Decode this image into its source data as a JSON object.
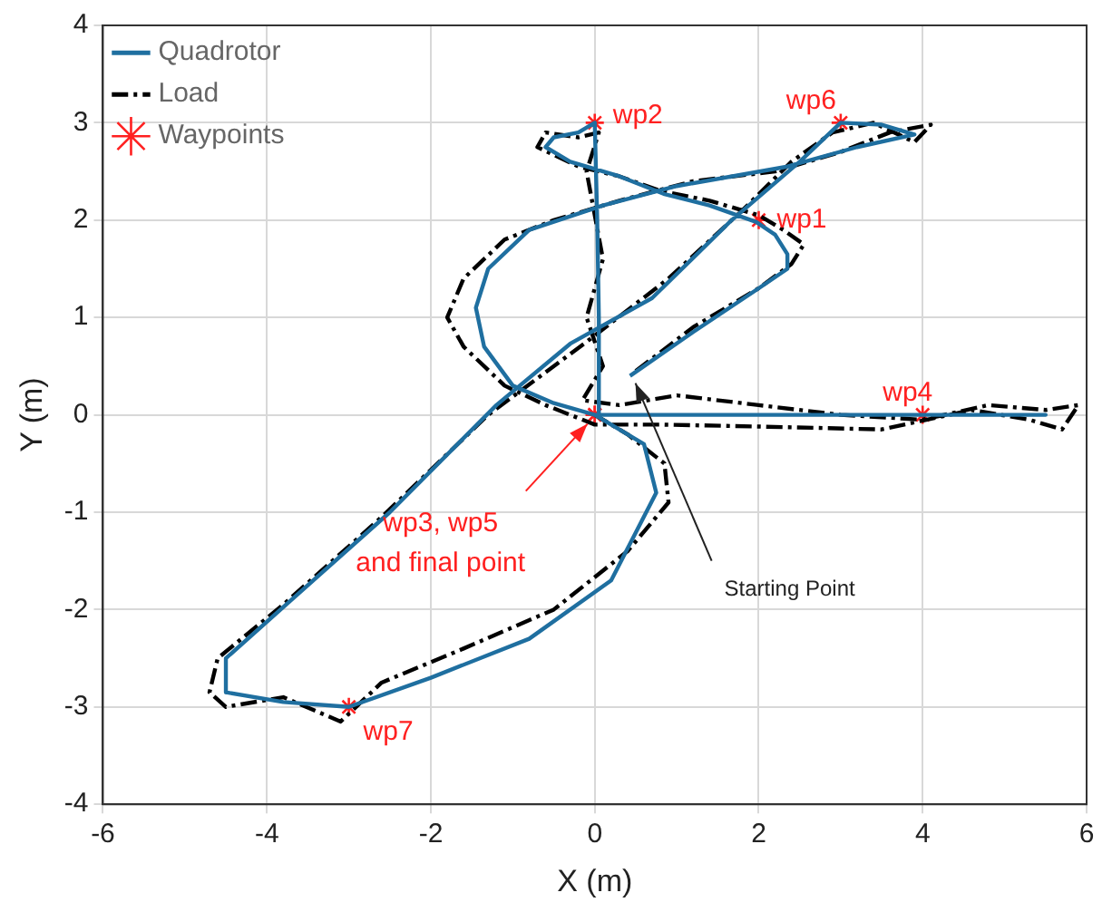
{
  "chart_data": {
    "type": "line",
    "xlabel": "X (m)",
    "ylabel": "Y (m)",
    "xlim": [
      -6,
      6
    ],
    "xticks": [
      -6,
      -4,
      -2,
      0,
      2,
      4,
      6
    ],
    "ylim": [
      -4,
      4
    ],
    "yticks": [
      -4,
      -3,
      -2,
      -1,
      0,
      1,
      2,
      3,
      4
    ],
    "grid": true,
    "legend": "top left",
    "series": [
      {
        "name": "Quadrotor",
        "color": "#1f6fa0",
        "line_style": "solid",
        "marker": "none",
        "x": [
          0.43,
          1.2,
          2.0,
          2.35,
          2.35,
          2.2,
          1.97,
          1.4,
          0.84,
          0.3,
          -0.3,
          -0.6,
          -0.5,
          -0.2,
          0,
          0.03,
          0.05,
          0.05,
          2,
          4,
          5.5,
          4,
          2,
          0,
          -0.5,
          -1.0,
          -1.35,
          -1.45,
          -1.3,
          -0.8,
          0.1,
          1,
          2.35,
          3.2,
          3.9,
          3.5,
          3.0,
          2.5,
          1.67,
          0.7,
          -0.3,
          -1.2,
          -2.5,
          -3.7,
          -4.5,
          -4.5,
          -3.8,
          -3,
          -2,
          -0.8,
          0.2,
          0.75,
          0.6,
          0
        ],
        "values": [
          0.4,
          0.85,
          1.3,
          1.5,
          1.65,
          1.85,
          1.98,
          2.15,
          2.27,
          2.45,
          2.6,
          2.75,
          2.85,
          2.9,
          3.0,
          2.0,
          1.0,
          0.0,
          0.0,
          0.0,
          0.0,
          0.0,
          0.0,
          0.0,
          0.12,
          0.3,
          0.7,
          1.1,
          1.5,
          1.9,
          2.15,
          2.35,
          2.55,
          2.75,
          2.88,
          2.98,
          3.0,
          2.6,
          2.0,
          1.2,
          0.73,
          0.1,
          -1,
          -1.9,
          -2.5,
          -2.85,
          -2.95,
          -3,
          -2.7,
          -2.3,
          -1.7,
          -0.8,
          -0.3,
          0
        ]
      },
      {
        "name": "Load",
        "color": "#000000",
        "line_style": "dashed",
        "marker": "none",
        "x": [
          0.5,
          1.2,
          2.0,
          2.4,
          2.55,
          2.3,
          2.0,
          1.4,
          0.8,
          0.3,
          -0.2,
          -0.7,
          -0.6,
          -0.2,
          0.05,
          -0.1,
          0.1,
          -0.1,
          0.1,
          -0.15,
          0.3,
          1,
          2,
          3,
          4,
          4.8,
          5.5,
          5.9,
          5.7,
          5.3,
          4.6,
          3.5,
          2,
          0.8,
          0,
          -0.6,
          -1.1,
          -1.6,
          -1.8,
          -1.6,
          -1.1,
          -0.5,
          0.3,
          1.2,
          2.2,
          3.0,
          3.6,
          4.1,
          3.9,
          3.4,
          2.9,
          2.4,
          1.8,
          0.9,
          -0.1,
          -1.3,
          -2.6,
          -3.8,
          -4.6,
          -4.7,
          -4.5,
          -3.8,
          -3.1,
          -2.6,
          -1.6,
          -0.5,
          0.4,
          0.9,
          0.85,
          0.4,
          0
        ],
        "values": [
          0.45,
          0.9,
          1.3,
          1.55,
          1.75,
          1.9,
          2.05,
          2.2,
          2.3,
          2.45,
          2.55,
          2.75,
          2.9,
          2.85,
          2.9,
          2.5,
          1.6,
          1.0,
          0.5,
          0.15,
          0.1,
          0.2,
          0.1,
          0.0,
          -0.05,
          0.1,
          0.05,
          0.1,
          -0.15,
          -0.05,
          0.05,
          -0.15,
          -0.12,
          -0.1,
          -0.1,
          0.1,
          0.3,
          0.7,
          1.0,
          1.4,
          1.8,
          2.0,
          2.2,
          2.4,
          2.5,
          2.7,
          2.9,
          2.98,
          2.8,
          3.0,
          2.9,
          2.6,
          2.1,
          1.4,
          0.75,
          0.0,
          -1.05,
          -1.95,
          -2.5,
          -2.85,
          -3.0,
          -2.9,
          -3.15,
          -2.75,
          -2.4,
          -2.0,
          -1.4,
          -0.9,
          -0.5,
          -0.2,
          0
        ]
      },
      {
        "name": "Waypoints",
        "type": "scatter",
        "color": "#ff2020",
        "marker": "cross",
        "x": [
          2,
          0,
          0,
          4,
          0,
          3,
          -3
        ],
        "values": [
          2,
          3,
          0,
          0,
          0,
          3,
          -3
        ]
      }
    ],
    "annotations": [
      {
        "text": "wp1",
        "x": 2,
        "y": 2
      },
      {
        "text": "wp2",
        "x": 0,
        "y": 3
      },
      {
        "text": "wp4",
        "x": 4,
        "y": 0
      },
      {
        "text": "wp6",
        "x": 3,
        "y": 3
      },
      {
        "text": "wp7",
        "x": -3,
        "y": -3
      },
      {
        "text": "wp3, wp5\nand final point",
        "x": 0,
        "y": 0
      },
      {
        "text": "Starting Point",
        "x": 0.43,
        "y": 0.4
      }
    ]
  }
}
